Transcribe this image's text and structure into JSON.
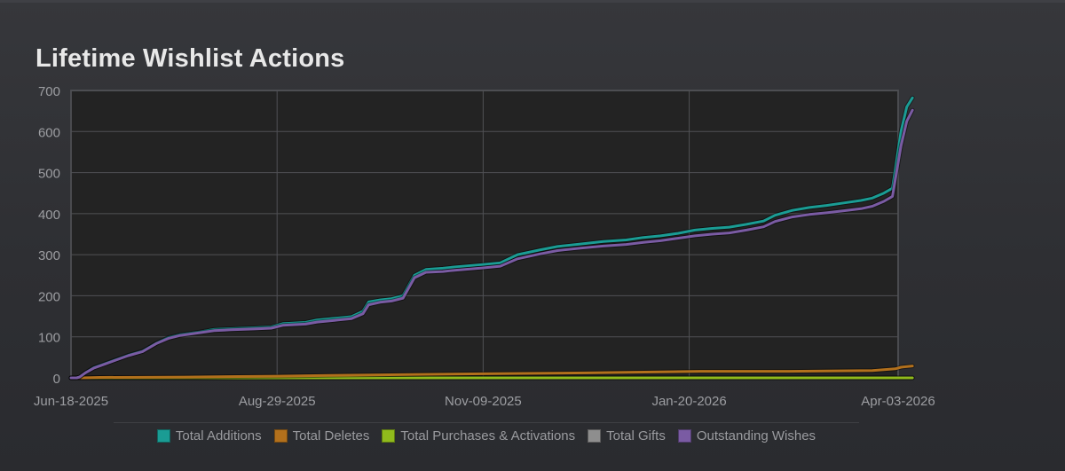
{
  "title": "Lifetime Wishlist Actions",
  "chart_data": {
    "type": "line",
    "title": "Lifetime Wishlist Actions",
    "xlabel": "",
    "ylabel": "",
    "ylim": [
      0,
      700
    ],
    "grid": true,
    "legend_position": "bottom",
    "y_ticks": [
      "0",
      "100",
      "200",
      "300",
      "400",
      "500",
      "600",
      "700"
    ],
    "x_tick_labels": [
      "Jun-18-2025",
      "Aug-29-2025",
      "Nov-09-2025",
      "Jan-20-2026",
      "Apr-03-2026"
    ],
    "x_domain_days": [
      0,
      289
    ],
    "x_tick_days": [
      0,
      72,
      144,
      216,
      289
    ],
    "series": [
      {
        "name": "Total Additions",
        "color": "#1a9c94",
        "points": [
          [
            0,
            0
          ],
          [
            2,
            0
          ],
          [
            3,
            2
          ],
          [
            5,
            12
          ],
          [
            8,
            25
          ],
          [
            12,
            35
          ],
          [
            16,
            45
          ],
          [
            20,
            55
          ],
          [
            25,
            65
          ],
          [
            30,
            85
          ],
          [
            34,
            98
          ],
          [
            38,
            105
          ],
          [
            45,
            112
          ],
          [
            50,
            118
          ],
          [
            56,
            120
          ],
          [
            64,
            122
          ],
          [
            70,
            124
          ],
          [
            74,
            132
          ],
          [
            82,
            135
          ],
          [
            86,
            141
          ],
          [
            92,
            145
          ],
          [
            98,
            149
          ],
          [
            102,
            162
          ],
          [
            104,
            185
          ],
          [
            108,
            190
          ],
          [
            112,
            193
          ],
          [
            116,
            200
          ],
          [
            120,
            250
          ],
          [
            124,
            264
          ],
          [
            130,
            267
          ],
          [
            134,
            270
          ],
          [
            144,
            276
          ],
          [
            150,
            280
          ],
          [
            156,
            300
          ],
          [
            164,
            312
          ],
          [
            170,
            320
          ],
          [
            178,
            326
          ],
          [
            186,
            332
          ],
          [
            194,
            336
          ],
          [
            200,
            342
          ],
          [
            206,
            346
          ],
          [
            212,
            352
          ],
          [
            218,
            360
          ],
          [
            224,
            364
          ],
          [
            230,
            367
          ],
          [
            236,
            374
          ],
          [
            242,
            382
          ],
          [
            246,
            396
          ],
          [
            252,
            408
          ],
          [
            258,
            415
          ],
          [
            264,
            420
          ],
          [
            270,
            426
          ],
          [
            276,
            432
          ],
          [
            280,
            438
          ],
          [
            284,
            450
          ],
          [
            287,
            462
          ],
          [
            290,
            600
          ],
          [
            292,
            660
          ],
          [
            294,
            682
          ]
        ]
      },
      {
        "name": "Total Deletes",
        "color": "#b2701c",
        "points": [
          [
            0,
            0
          ],
          [
            3,
            0
          ],
          [
            10,
            1
          ],
          [
            40,
            2
          ],
          [
            72,
            4
          ],
          [
            90,
            6
          ],
          [
            144,
            10
          ],
          [
            180,
            12
          ],
          [
            220,
            16
          ],
          [
            250,
            16
          ],
          [
            280,
            18
          ],
          [
            288,
            22
          ],
          [
            290,
            26
          ],
          [
            294,
            29
          ]
        ]
      },
      {
        "name": "Total Purchases & Activations",
        "color": "#90ba1c",
        "points": [
          [
            0,
            0
          ],
          [
            294,
            0
          ]
        ]
      },
      {
        "name": "Total Gifts",
        "color": "#8e8e8e",
        "points": [
          [
            0,
            0
          ],
          [
            294,
            0
          ]
        ]
      },
      {
        "name": "Outstanding Wishes",
        "color": "#7a5ba3",
        "points": [
          [
            0,
            0
          ],
          [
            2,
            0
          ],
          [
            3,
            2
          ],
          [
            5,
            12
          ],
          [
            8,
            24
          ],
          [
            12,
            34
          ],
          [
            16,
            44
          ],
          [
            20,
            54
          ],
          [
            25,
            64
          ],
          [
            30,
            84
          ],
          [
            34,
            96
          ],
          [
            38,
            103
          ],
          [
            45,
            110
          ],
          [
            50,
            115
          ],
          [
            56,
            117
          ],
          [
            64,
            119
          ],
          [
            70,
            121
          ],
          [
            74,
            128
          ],
          [
            82,
            131
          ],
          [
            86,
            136
          ],
          [
            92,
            140
          ],
          [
            98,
            144
          ],
          [
            102,
            156
          ],
          [
            104,
            178
          ],
          [
            108,
            184
          ],
          [
            112,
            187
          ],
          [
            116,
            194
          ],
          [
            120,
            244
          ],
          [
            124,
            257
          ],
          [
            130,
            259
          ],
          [
            134,
            262
          ],
          [
            144,
            268
          ],
          [
            150,
            272
          ],
          [
            156,
            290
          ],
          [
            164,
            302
          ],
          [
            170,
            310
          ],
          [
            178,
            316
          ],
          [
            186,
            321
          ],
          [
            194,
            325
          ],
          [
            200,
            330
          ],
          [
            206,
            334
          ],
          [
            212,
            340
          ],
          [
            218,
            346
          ],
          [
            224,
            350
          ],
          [
            230,
            353
          ],
          [
            236,
            360
          ],
          [
            242,
            368
          ],
          [
            246,
            381
          ],
          [
            252,
            392
          ],
          [
            258,
            398
          ],
          [
            264,
            402
          ],
          [
            270,
            407
          ],
          [
            276,
            412
          ],
          [
            280,
            418
          ],
          [
            284,
            430
          ],
          [
            287,
            442
          ],
          [
            290,
            565
          ],
          [
            292,
            625
          ],
          [
            294,
            652
          ]
        ]
      }
    ]
  }
}
